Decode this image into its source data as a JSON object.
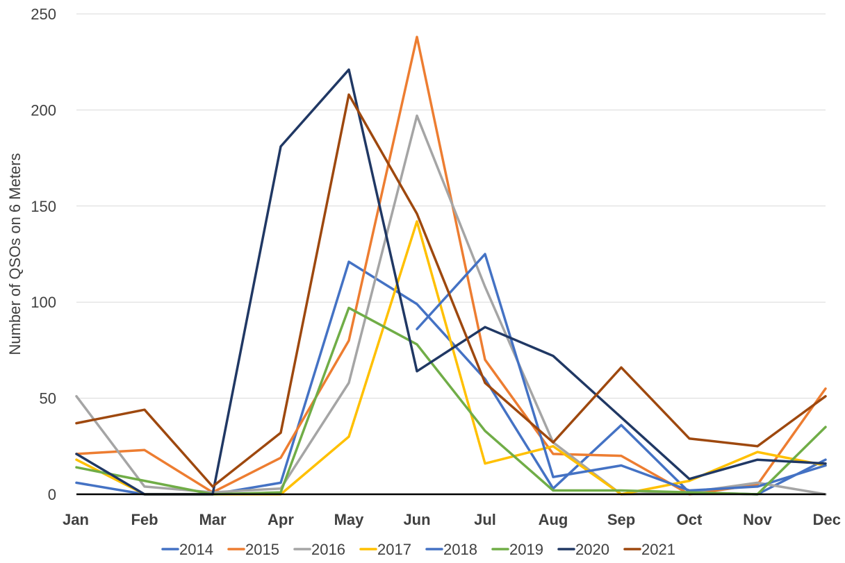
{
  "chart_data": {
    "type": "line",
    "title": "",
    "xlabel": "",
    "ylabel": "Number of QSOs on 6 Meters",
    "ylim": [
      0,
      250
    ],
    "yticks": [
      0,
      50,
      100,
      150,
      200,
      250
    ],
    "grid": true,
    "legend_position": "bottom",
    "categories": [
      "Jan",
      "Feb",
      "Mar",
      "Apr",
      "May",
      "Jun",
      "Jul",
      "Aug",
      "Sep",
      "Oct",
      "Nov",
      "Dec"
    ],
    "series": [
      {
        "name": "2014",
        "color": "#4472c4",
        "values": [
          6,
          0,
          0,
          6,
          121,
          99,
          60,
          3,
          36,
          1,
          0,
          18
        ]
      },
      {
        "name": "2015",
        "color": "#ed7d31",
        "values": [
          21,
          23,
          1,
          19,
          80,
          238,
          70,
          21,
          20,
          0,
          5,
          55
        ]
      },
      {
        "name": "2016",
        "color": "#a5a5a5",
        "values": [
          51,
          4,
          1,
          3,
          58,
          197,
          108,
          27,
          0,
          1,
          6,
          0
        ]
      },
      {
        "name": "2017",
        "color": "#ffc000",
        "values": [
          18,
          0,
          0,
          0,
          30,
          142,
          16,
          25,
          0,
          7,
          22,
          15
        ]
      },
      {
        "name": "2018",
        "color": "#4472c4",
        "values": [
          null,
          null,
          null,
          null,
          null,
          86,
          125,
          9,
          15,
          2,
          4,
          15
        ]
      },
      {
        "name": "2019",
        "color": "#70ad47",
        "values": [
          14,
          7,
          0,
          1,
          97,
          78,
          33,
          2,
          2,
          1,
          0,
          35
        ]
      },
      {
        "name": "2020",
        "color": "#203864",
        "values": [
          21,
          0,
          0,
          181,
          221,
          64,
          87,
          72,
          40,
          8,
          18,
          16
        ]
      },
      {
        "name": "2021",
        "color": "#9e480e",
        "values": [
          37,
          44,
          4,
          32,
          208,
          146,
          58,
          27,
          66,
          29,
          25,
          51
        ]
      }
    ]
  }
}
